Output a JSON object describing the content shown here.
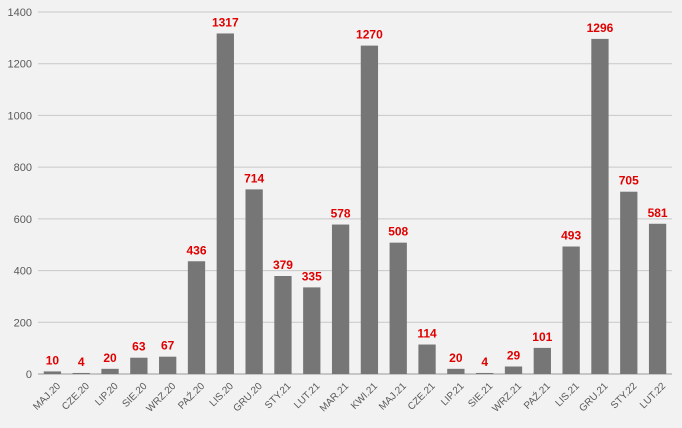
{
  "chart_data": {
    "type": "bar",
    "categories": [
      "MAJ.20",
      "CZE.20",
      "LIP.20",
      "SIE.20",
      "WRZ.20",
      "PAŹ.20",
      "LIS.20",
      "GRU.20",
      "STY.21",
      "LUT.21",
      "MAR.21",
      "KWI.21",
      "MAJ.21",
      "CZE.21",
      "LIP.21",
      "SIE.21",
      "WRZ.21",
      "PAŹ.21",
      "LIS.21",
      "GRU.21",
      "STY.22",
      "LUT.22"
    ],
    "values": [
      10,
      4,
      20,
      63,
      67,
      436,
      1317,
      714,
      379,
      335,
      578,
      1270,
      508,
      114,
      20,
      4,
      29,
      101,
      493,
      1296,
      705,
      581
    ],
    "data_labels": [
      "10",
      "4",
      "20",
      "63",
      "67",
      "436",
      "1317",
      "714",
      "379",
      "335",
      "578",
      "1270",
      "508",
      "114",
      "20",
      "4",
      "29",
      "101",
      "493",
      "1296",
      "705",
      "581"
    ],
    "yticks": [
      "0",
      "200",
      "400",
      "600",
      "800",
      "1000",
      "1200",
      "1400"
    ],
    "ylim": [
      0,
      1400
    ],
    "grid": true,
    "title": "",
    "xlabel": "",
    "ylabel": ""
  },
  "colors": {
    "bar": "#767676",
    "data_label": "#e00000",
    "background": "#f2f2f2"
  }
}
